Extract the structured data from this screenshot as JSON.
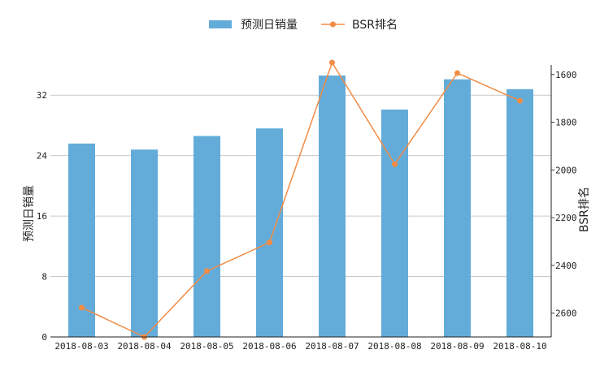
{
  "chart_data": {
    "type": "bar",
    "categories": [
      "2018-08-03",
      "2018-08-04",
      "2018-08-05",
      "2018-08-06",
      "2018-08-07",
      "2018-08-08",
      "2018-08-09",
      "2018-08-10"
    ],
    "series": [
      {
        "name": "预测日销量",
        "type": "bar",
        "axis": "left",
        "color": "#63acd9",
        "values": [
          25.6,
          24.8,
          26.6,
          27.6,
          34.6,
          30.1,
          34.1,
          32.8
        ]
      },
      {
        "name": "BSR排名",
        "type": "line",
        "axis": "right",
        "color": "#f28c46",
        "values": [
          2577,
          2700,
          2424,
          2304,
          1550,
          1976,
          1594,
          1710
        ]
      }
    ],
    "ylabel": "预测日销量",
    "ylabel_right": "BSR排名",
    "ylim": [
      0,
      36
    ],
    "yticks": [
      0,
      8,
      16,
      24,
      32
    ],
    "ylim_right": [
      1560,
      2700
    ],
    "yticks_right": [
      1600,
      1800,
      2000,
      2200,
      2400,
      2600
    ],
    "right_axis_inverted": true,
    "grid": true,
    "legend": "top-center"
  }
}
